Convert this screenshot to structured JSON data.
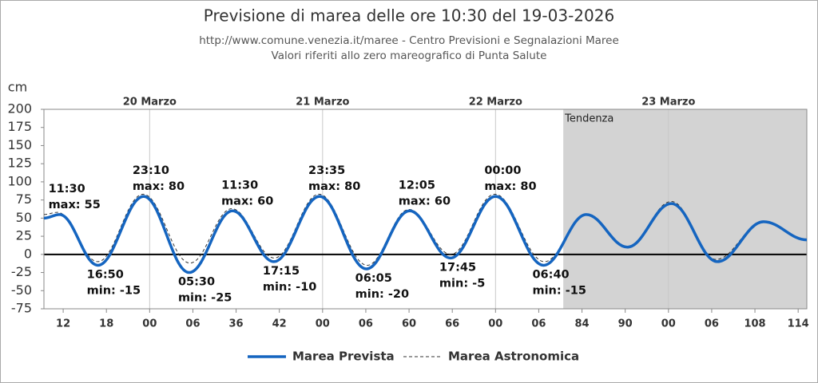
{
  "chart_data": {
    "type": "line",
    "title": "Previsione di marea delle ore 10:30 del 19-03-2026",
    "subtitles": [
      "http://www.comune.venezia.it/maree - Centro Previsioni e Segnalazioni Maree",
      "Valori riferiti allo zero mareografico di Punta Salute"
    ],
    "ylabel": "cm",
    "xlim": [
      9.33,
      115.2
    ],
    "ylim": [
      -75,
      200
    ],
    "yticks": [
      -75,
      -50,
      -25,
      0,
      25,
      50,
      75,
      100,
      125,
      150,
      175,
      200
    ],
    "xticks": [
      12,
      18,
      {
        "value": 24,
        "label": "00"
      },
      {
        "value": 30,
        "label": "06"
      },
      36,
      42,
      {
        "value": 48,
        "label": "00"
      },
      {
        "value": 54,
        "label": "06"
      },
      60,
      66,
      {
        "value": 72,
        "label": "00"
      },
      {
        "value": 78,
        "label": "06"
      },
      84,
      90,
      {
        "value": 96,
        "label": "00"
      },
      {
        "value": 102,
        "label": "06"
      },
      108,
      114
    ],
    "day_labels": [
      {
        "value": 24,
        "label": "20 Marzo"
      },
      {
        "value": 48,
        "label": "21 Marzo"
      },
      {
        "value": 72,
        "label": "22 Marzo"
      },
      {
        "value": 96,
        "label": "23 Marzo"
      }
    ],
    "shaded_region": {
      "from": 81.4,
      "to": 115.2,
      "label": "Tendenza",
      "color": "#d3d3d3"
    },
    "series": [
      {
        "name": "Marea Prevista",
        "color": "#1565c0",
        "dash": false,
        "x": [
          9.33,
          11.5,
          16.83,
          23.17,
          29.5,
          35.5,
          41.25,
          47.58,
          54.08,
          60.08,
          65.75,
          72,
          78.67,
          84.6,
          90.3,
          96.4,
          102.8,
          109.2,
          115.2
        ],
        "values": [
          50,
          55,
          -15,
          80,
          -25,
          60,
          -10,
          80,
          -20,
          60,
          -5,
          80,
          -15,
          55,
          10,
          70,
          -10,
          45,
          20
        ]
      },
      {
        "name": "Marea Astronomica",
        "color": "#333333",
        "dash": true,
        "x": [
          9.33,
          11.2,
          16.8,
          23.1,
          29.6,
          35.4,
          41.3,
          47.5,
          54.2,
          60,
          65.8,
          71.9,
          78.8,
          84.6,
          90.3,
          96.4,
          102.6,
          109.2,
          115.2
        ],
        "values": [
          55,
          58,
          -10,
          83,
          -12,
          63,
          -5,
          83,
          -15,
          62,
          0,
          83,
          -10,
          55,
          10,
          73,
          -7,
          45,
          20
        ]
      }
    ],
    "annotations": [
      {
        "time": "11:30",
        "label": "max: 55"
      },
      {
        "time": "16:50",
        "label": "min: -15"
      },
      {
        "time": "23:10",
        "label": "max: 80"
      },
      {
        "time": "05:30",
        "label": "min: -25"
      },
      {
        "time": "11:30",
        "label": "max: 60"
      },
      {
        "time": "17:15",
        "label": "min: -10"
      },
      {
        "time": "23:35",
        "label": "max: 80"
      },
      {
        "time": "06:05",
        "label": "min: -20"
      },
      {
        "time": "12:05",
        "label": "max: 60"
      },
      {
        "time": "17:45",
        "label": "min: -5"
      },
      {
        "time": "00:00",
        "label": "max: 80"
      },
      {
        "time": "06:40",
        "label": "min: -15"
      }
    ]
  }
}
